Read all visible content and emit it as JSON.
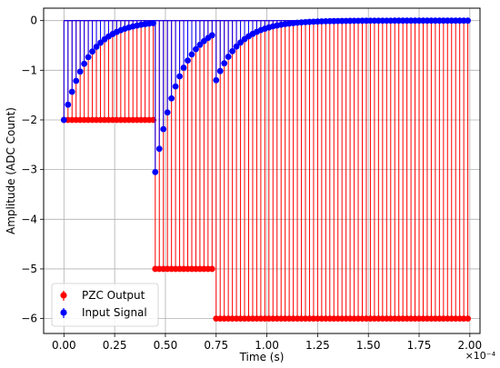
{
  "chart_data": {
    "type": "stem",
    "xlabel": "Time (s)",
    "ylabel": "Amplitude (ADC Count)",
    "x_offset_label": "×10⁻⁴",
    "x_scale": 0.0001,
    "xlim": [
      -0.1,
      2.05
    ],
    "ylim": [
      -6.3,
      0.25
    ],
    "grid": true,
    "legend_position": "lower-left",
    "x_ticks": [
      0.0,
      0.25,
      0.5,
      0.75,
      1.0,
      1.25,
      1.5,
      1.75,
      2.0
    ],
    "x_tick_labels": [
      "0.00",
      "0.25",
      "0.50",
      "0.75",
      "1.00",
      "1.25",
      "1.50",
      "1.75",
      "2.00"
    ],
    "y_ticks": [
      0,
      -1,
      -2,
      -3,
      -4,
      -5,
      -6
    ],
    "y_tick_labels": [
      "0",
      "−1",
      "−2",
      "−3",
      "−4",
      "−5",
      "−6"
    ],
    "series": [
      {
        "name": "PZC Output",
        "color": "#ff0000",
        "segments": [
          {
            "x_start": 0.0,
            "x_end": 0.43,
            "step": 0.02,
            "value": -2
          },
          {
            "x_start": 0.45,
            "x_end": 0.73,
            "step": 0.02,
            "value": -5
          },
          {
            "x_start": 0.75,
            "x_end": 1.99,
            "step": 0.02,
            "value": -6
          }
        ]
      },
      {
        "name": "Input Signal",
        "color": "#0000ff",
        "segments": [
          {
            "x_start": 0.0,
            "x_end": 0.43,
            "step": 0.02,
            "amplitude": -2,
            "decay": 0.12
          },
          {
            "x_start": 0.45,
            "x_end": 0.73,
            "step": 0.02,
            "amplitude": -3.05,
            "decay": 0.12
          },
          {
            "x_start": 0.75,
            "x_end": 1.99,
            "step": 0.02,
            "amplitude": -1.2,
            "decay": 0.12
          }
        ]
      }
    ]
  }
}
